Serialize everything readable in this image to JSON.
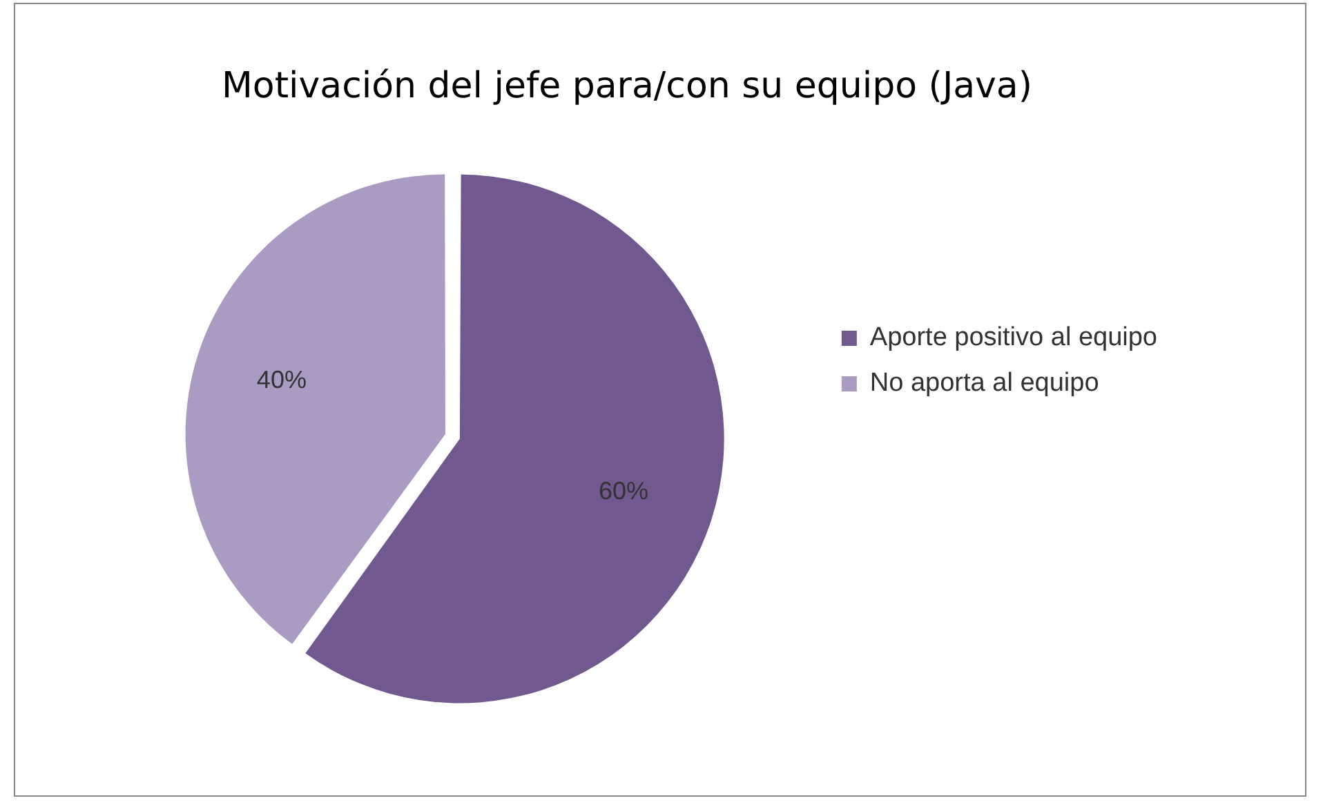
{
  "chart_data": {
    "type": "pie",
    "title": "Motivación del jefe para/con su equipo (Java)",
    "categories": [
      "Aporte positivo al equipo",
      "No aporta al equipo"
    ],
    "values": [
      60,
      40
    ],
    "colors": [
      "#71588f",
      "#a99bc2"
    ],
    "value_labels": [
      "60%",
      "40%"
    ],
    "legend": "right"
  }
}
